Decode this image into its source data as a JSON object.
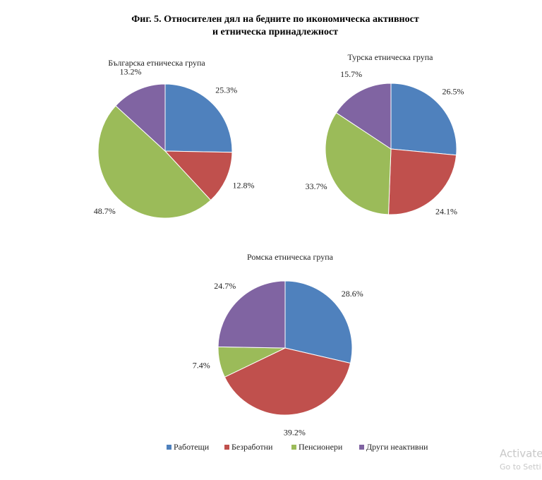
{
  "title": [
    "Фиг. 5. Относителен дял на бедните по икономическа активност",
    "и етническа принадлежност"
  ],
  "watermark": [
    "Activate",
    "Go to Setti"
  ],
  "chart_data": [
    {
      "type": "pie",
      "title": "Българска етническа група",
      "categories": [
        "Работещи",
        "Безработни",
        "Пенсионери",
        "Други неактивни"
      ],
      "values": [
        25.3,
        12.8,
        48.7,
        13.2
      ],
      "value_labels": [
        "25.3%",
        "12.8%",
        "48.7%",
        "13.2%"
      ],
      "colors": [
        "#4f81bd",
        "#c0504d",
        "#9bbb59",
        "#8064a2"
      ]
    },
    {
      "type": "pie",
      "title": "Турска етническа група",
      "categories": [
        "Работещи",
        "Безработни",
        "Пенсионери",
        "Други неактивни"
      ],
      "values": [
        26.5,
        24.1,
        33.7,
        15.7
      ],
      "value_labels": [
        "26.5%",
        "24.1%",
        "33.7%",
        "15.7%"
      ],
      "colors": [
        "#4f81bd",
        "#c0504d",
        "#9bbb59",
        "#8064a2"
      ]
    },
    {
      "type": "pie",
      "title": "Ромска етническа група",
      "categories": [
        "Работещи",
        "Безработни",
        "Пенсионери",
        "Други неактивни"
      ],
      "values": [
        28.6,
        39.2,
        7.4,
        24.7
      ],
      "value_labels": [
        "28.6%",
        "39.2%",
        "7.4%",
        "24.7%"
      ],
      "colors": [
        "#4f81bd",
        "#c0504d",
        "#9bbb59",
        "#8064a2"
      ]
    }
  ]
}
